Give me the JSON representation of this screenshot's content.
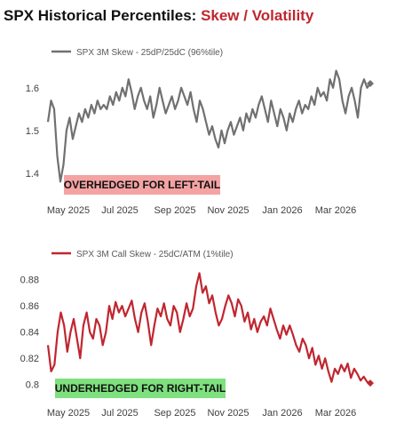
{
  "title": {
    "part1": "SPX Historical Percentiles:",
    "part2": "Skew / Volatility"
  },
  "colors": {
    "title_accent": "#c0262f",
    "series1": "#707070",
    "series2": "#c0262f",
    "annot1_bg": "#f4a3a3",
    "annot2_bg": "#7ee07e"
  },
  "chart_data": [
    {
      "type": "line",
      "x_tick_labels": [
        "May 2025",
        "Jul 2025",
        "Sep 2025",
        "Nov 2025",
        "Jan 2026",
        "Mar 2026"
      ],
      "ylim": [
        1.36,
        1.66
      ],
      "yticks": [
        1.4,
        1.5,
        1.6
      ],
      "ytick_labels": [
        "1.4",
        "1.5",
        "1.6"
      ],
      "grid": false,
      "legend_position": "top-left",
      "series": [
        {
          "name": "SPX 3M Skew - 25dP/25dC (96%tile)",
          "x_index_range": [
            0,
            1
          ],
          "values": [
            1.52,
            1.57,
            1.55,
            1.44,
            1.38,
            1.42,
            1.5,
            1.53,
            1.48,
            1.51,
            1.54,
            1.52,
            1.55,
            1.53,
            1.56,
            1.54,
            1.57,
            1.55,
            1.56,
            1.55,
            1.58,
            1.56,
            1.59,
            1.57,
            1.6,
            1.58,
            1.62,
            1.59,
            1.55,
            1.58,
            1.6,
            1.57,
            1.55,
            1.58,
            1.53,
            1.56,
            1.6,
            1.57,
            1.54,
            1.56,
            1.58,
            1.55,
            1.57,
            1.6,
            1.58,
            1.56,
            1.59,
            1.55,
            1.52,
            1.57,
            1.55,
            1.52,
            1.49,
            1.51,
            1.48,
            1.46,
            1.5,
            1.47,
            1.5,
            1.52,
            1.49,
            1.51,
            1.53,
            1.5,
            1.54,
            1.52,
            1.55,
            1.53,
            1.56,
            1.58,
            1.55,
            1.52,
            1.57,
            1.54,
            1.51,
            1.55,
            1.53,
            1.5,
            1.54,
            1.52,
            1.55,
            1.57,
            1.54,
            1.56,
            1.55,
            1.58,
            1.56,
            1.6,
            1.58,
            1.59,
            1.57,
            1.62,
            1.6,
            1.64,
            1.62,
            1.57,
            1.54,
            1.58,
            1.6,
            1.57,
            1.53,
            1.6,
            1.62,
            1.6,
            1.61
          ],
          "end_marker": "diamond"
        }
      ],
      "annotation": "OVERHEDGED FOR LEFT-TAIL"
    },
    {
      "type": "line",
      "x_tick_labels": [
        "May 2025",
        "Jul 2025",
        "Sep 2025",
        "Nov 2025",
        "Jan 2026",
        "Mar 2026"
      ],
      "ylim": [
        0.795,
        0.89
      ],
      "yticks": [
        0.8,
        0.82,
        0.84,
        0.86,
        0.88
      ],
      "ytick_labels": [
        "0.8",
        "0.82",
        "0.84",
        "0.86",
        "0.88"
      ],
      "grid": false,
      "legend_position": "top-left",
      "series": [
        {
          "name": "SPX 3M Call Skew - 25dC/ATM (1%tile)",
          "x_index_range": [
            0,
            1
          ],
          "values": [
            0.83,
            0.81,
            0.815,
            0.84,
            0.855,
            0.845,
            0.825,
            0.84,
            0.85,
            0.835,
            0.82,
            0.845,
            0.855,
            0.84,
            0.835,
            0.85,
            0.845,
            0.83,
            0.84,
            0.86,
            0.85,
            0.863,
            0.855,
            0.86,
            0.852,
            0.858,
            0.864,
            0.85,
            0.84,
            0.855,
            0.862,
            0.848,
            0.83,
            0.845,
            0.858,
            0.852,
            0.862,
            0.85,
            0.845,
            0.86,
            0.855,
            0.84,
            0.85,
            0.862,
            0.852,
            0.858,
            0.875,
            0.885,
            0.87,
            0.875,
            0.862,
            0.868,
            0.855,
            0.845,
            0.85,
            0.86,
            0.868,
            0.862,
            0.852,
            0.865,
            0.86,
            0.848,
            0.855,
            0.842,
            0.85,
            0.84,
            0.848,
            0.852,
            0.845,
            0.858,
            0.85,
            0.842,
            0.835,
            0.845,
            0.838,
            0.845,
            0.838,
            0.83,
            0.825,
            0.835,
            0.83,
            0.82,
            0.828,
            0.815,
            0.822,
            0.812,
            0.82,
            0.81,
            0.802,
            0.812,
            0.808,
            0.815,
            0.81,
            0.816,
            0.805,
            0.812,
            0.808,
            0.803,
            0.806,
            0.802,
            0.801
          ],
          "end_marker": "diamond"
        }
      ],
      "annotation": "UNDERHEDGED FOR RIGHT-TAIL"
    }
  ]
}
